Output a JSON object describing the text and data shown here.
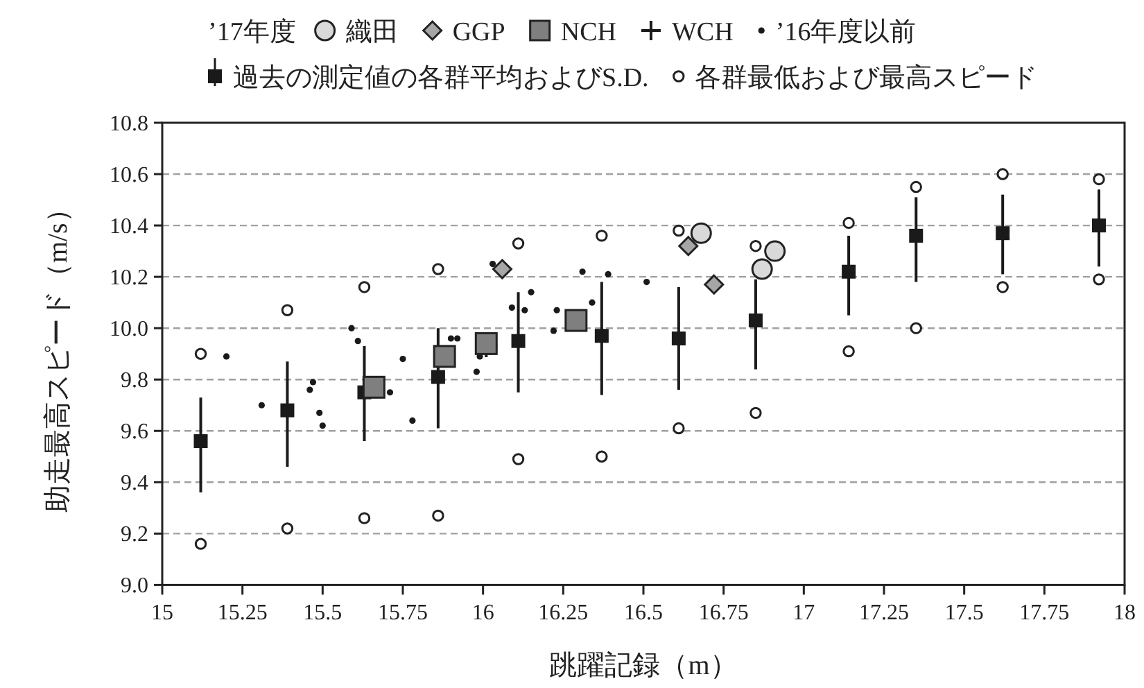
{
  "chart_data": {
    "type": "scatter",
    "xlabel": "跳躍記録（m）",
    "ylabel": "助走最高スピード（m/s）",
    "legend_title": "’17年度",
    "xlim": [
      15,
      18
    ],
    "xticks": [
      15,
      15.25,
      15.5,
      15.75,
      16,
      16.25,
      16.5,
      16.75,
      17,
      17.25,
      17.5,
      17.75,
      18
    ],
    "ylim": [
      9,
      10.8
    ],
    "yticks": [
      {
        "value": 9,
        "label": "9.0"
      },
      9.2,
      9.4,
      9.6,
      9.8,
      {
        "value": 10,
        "label": "10.0"
      },
      10.2,
      10.4,
      10.6,
      10.8
    ],
    "grid": "y",
    "legend": "top",
    "series": [
      {
        "name": "織田",
        "type": "scatter",
        "marker": "circle",
        "color": "#d9d9d9",
        "x": [
          16.68,
          16.91,
          16.87
        ],
        "values": [
          10.37,
          10.3,
          10.23
        ]
      },
      {
        "name": "GGP",
        "type": "scatter",
        "marker": "diamond",
        "color": "#a6a6a6",
        "x": [
          16.06,
          16.64,
          16.72
        ],
        "values": [
          10.23,
          10.32,
          10.17
        ]
      },
      {
        "name": "NCH",
        "type": "scatter",
        "marker": "square",
        "color": "#7f7f7f",
        "x": [
          15.66,
          15.88,
          16.01,
          16.29
        ],
        "values": [
          9.77,
          9.89,
          9.94,
          10.03
        ]
      },
      {
        "name": "WCH",
        "type": "scatter",
        "marker": "cross",
        "color": "#1a1a1a",
        "x": [
          16.01
        ],
        "values": [
          9.93
        ]
      },
      {
        "name": "’16年度以前",
        "type": "scatter",
        "marker": "circle",
        "color": "#1a1a1a",
        "x": [
          15.2,
          15.31,
          15.46,
          15.47,
          15.49,
          15.5,
          15.59,
          15.61,
          15.71,
          15.75,
          15.78,
          15.9,
          15.92,
          15.98,
          15.99,
          16.03,
          16.09,
          16.13,
          16.15,
          16.22,
          16.23,
          16.31,
          16.34,
          16.39,
          16.51
        ],
        "values": [
          9.89,
          9.7,
          9.76,
          9.79,
          9.67,
          9.62,
          10.0,
          9.95,
          9.75,
          9.88,
          9.64,
          9.96,
          9.96,
          9.83,
          9.89,
          10.25,
          10.08,
          10.07,
          10.14,
          9.99,
          10.07,
          10.22,
          10.1,
          10.21,
          10.18
        ]
      },
      {
        "name": "過去の測定値の各群平均およびS.D.",
        "type": "scatter",
        "marker": "square",
        "color": "#1a1a1a",
        "x": [
          15.12,
          15.39,
          15.63,
          15.86,
          16.11,
          16.37,
          16.61,
          16.85,
          17.14,
          17.35,
          17.62,
          17.92
        ],
        "values": [
          9.56,
          9.68,
          9.75,
          9.81,
          9.95,
          9.97,
          9.96,
          10.03,
          10.22,
          10.36,
          10.37,
          10.4
        ],
        "errors": [
          [
            9.36,
            9.73
          ],
          [
            9.46,
            9.87
          ],
          [
            9.56,
            9.93
          ],
          [
            9.61,
            10.0
          ],
          [
            9.75,
            10.14
          ],
          [
            9.74,
            10.18
          ],
          [
            9.76,
            10.16
          ],
          [
            9.84,
            10.19
          ],
          [
            10.05,
            10.36
          ],
          [
            10.18,
            10.51
          ],
          [
            10.21,
            10.52
          ],
          [
            10.24,
            10.54
          ]
        ]
      },
      {
        "name": "各群最低および最高スピード",
        "type": "scatter",
        "marker": "circle",
        "color": "#ffffff",
        "x": [
          15.12,
          15.12,
          15.39,
          15.39,
          15.63,
          15.63,
          15.86,
          15.86,
          16.11,
          16.11,
          16.37,
          16.37,
          16.61,
          16.61,
          16.85,
          16.85,
          17.14,
          17.14,
          17.35,
          17.35,
          17.62,
          17.62,
          17.92,
          17.92
        ],
        "values": [
          9.9,
          9.16,
          10.07,
          9.22,
          10.16,
          9.26,
          10.23,
          9.27,
          10.33,
          9.49,
          10.36,
          9.5,
          10.38,
          9.61,
          10.32,
          9.67,
          10.41,
          9.91,
          10.55,
          10.0,
          10.6,
          10.16,
          10.58,
          10.19
        ]
      }
    ]
  }
}
